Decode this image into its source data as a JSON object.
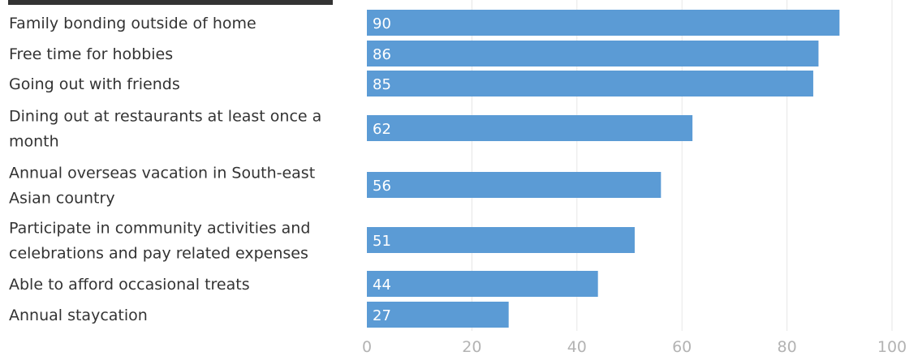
{
  "chart_data": {
    "type": "bar",
    "orientation": "horizontal",
    "categories": [
      "Family bonding outside of home",
      "Free time for hobbies",
      "Going out with friends",
      "Dining out at restaurants at least once a month",
      "Annual overseas vacation in South-east Asian country",
      "Participate in community activities and celebrations and pay related expenses",
      "Able to afford occasional treats",
      "Annual staycation"
    ],
    "category_lines": [
      [
        "Family bonding outside of home"
      ],
      [
        "Free time for hobbies"
      ],
      [
        "Going out with friends"
      ],
      [
        "Dining out at restaurants at least once a",
        "month"
      ],
      [
        "Annual overseas vacation in South-east",
        "Asian country"
      ],
      [
        "Participate in community activities and",
        "celebrations and pay related expenses"
      ],
      [
        "Able to afford occasional treats"
      ],
      [
        "Annual staycation"
      ]
    ],
    "values": [
      90,
      86,
      85,
      62,
      56,
      51,
      44,
      27
    ],
    "x_ticks": [
      0,
      20,
      40,
      60,
      80,
      100
    ],
    "xlim": [
      0,
      100
    ],
    "grid": true,
    "bar_color": "#5b9bd5",
    "title": "",
    "xlabel": "",
    "ylabel": ""
  }
}
